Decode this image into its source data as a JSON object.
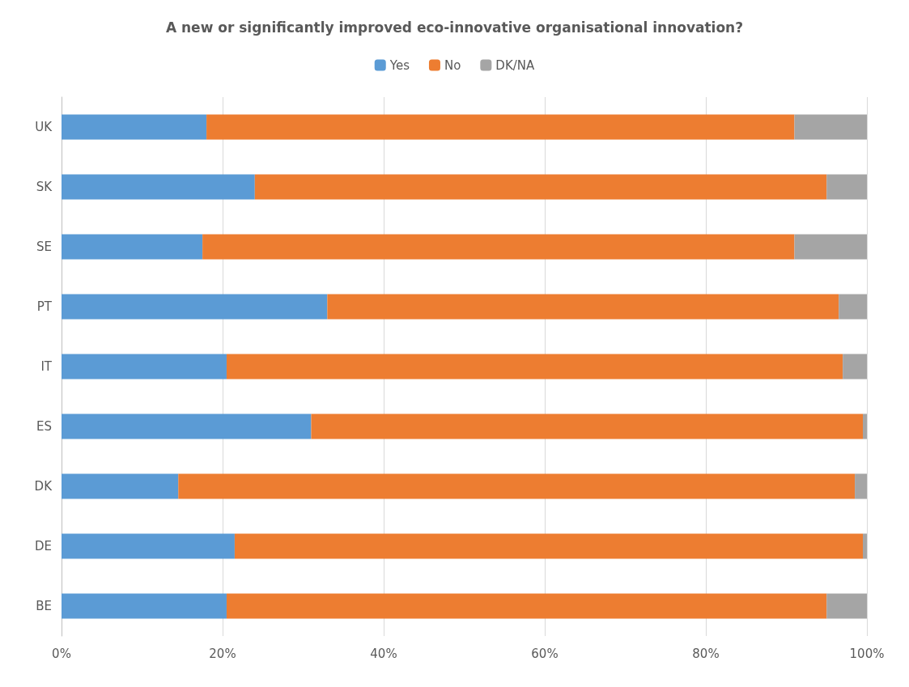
{
  "chart_data": {
    "type": "bar",
    "orientation": "horizontal",
    "stacked": true,
    "title": "A new or significantly improved eco-innovative organisational innovation?",
    "categories": [
      "UK",
      "SK",
      "SE",
      "PT",
      "IT",
      "ES",
      "DK",
      "DE",
      "BE"
    ],
    "series": [
      {
        "name": "Yes",
        "color": "#5b9bd5",
        "values": [
          18,
          24,
          17.5,
          33,
          20.5,
          31,
          14.5,
          21.5,
          20.5
        ]
      },
      {
        "name": "No",
        "color": "#ed7d31",
        "values": [
          73,
          71,
          73.5,
          63.5,
          76.5,
          68.5,
          84,
          78,
          74.5
        ]
      },
      {
        "name": "DK/NA",
        "color": "#a5a5a5",
        "values": [
          9,
          5,
          9,
          3.5,
          3,
          0.5,
          1.5,
          0.5,
          5
        ]
      }
    ],
    "xlim": [
      0,
      100
    ],
    "xticks": [
      {
        "value": 0,
        "label": "0%"
      },
      {
        "value": 20,
        "label": "20%"
      },
      {
        "value": 40,
        "label": "40%"
      },
      {
        "value": 60,
        "label": "60%"
      },
      {
        "value": 80,
        "label": "80%"
      },
      {
        "value": 100,
        "label": "100%"
      }
    ],
    "grid": "x",
    "legend": "top"
  }
}
